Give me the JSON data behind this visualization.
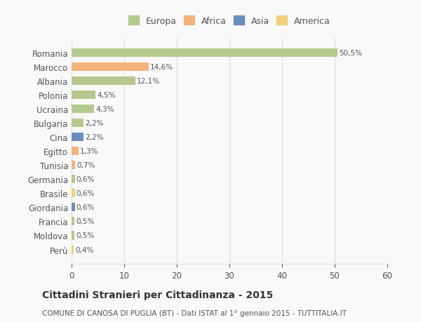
{
  "countries": [
    "Romania",
    "Marocco",
    "Albania",
    "Polonia",
    "Ucraina",
    "Bulgaria",
    "Cina",
    "Egitto",
    "Tunisia",
    "Germania",
    "Brasile",
    "Giordania",
    "Francia",
    "Moldova",
    "Perù"
  ],
  "values": [
    50.5,
    14.6,
    12.1,
    4.5,
    4.3,
    2.2,
    2.2,
    1.3,
    0.7,
    0.6,
    0.6,
    0.6,
    0.5,
    0.5,
    0.4
  ],
  "labels": [
    "50,5%",
    "14,6%",
    "12,1%",
    "4,5%",
    "4,3%",
    "2,2%",
    "2,2%",
    "1,3%",
    "0,7%",
    "0,6%",
    "0,6%",
    "0,6%",
    "0,5%",
    "0,5%",
    "0,4%"
  ],
  "continents": [
    "Europa",
    "Africa",
    "Europa",
    "Europa",
    "Europa",
    "Europa",
    "Asia",
    "Africa",
    "Africa",
    "Europa",
    "America",
    "Asia",
    "Europa",
    "Europa",
    "America"
  ],
  "continent_colors": {
    "Europa": "#b5c98e",
    "Africa": "#f0b47c",
    "Asia": "#6b8ebf",
    "America": "#f0d07c"
  },
  "legend_order": [
    "Europa",
    "Africa",
    "Asia",
    "America"
  ],
  "title": "Cittadini Stranieri per Cittadinanza - 2015",
  "subtitle": "COMUNE DI CANOSA DI PUGLIA (BT) - Dati ISTAT al 1° gennaio 2015 - TUTTITALIA.IT",
  "xlim": [
    0,
    60
  ],
  "xticks": [
    0,
    10,
    20,
    30,
    40,
    50,
    60
  ],
  "bar_height": 0.6,
  "background_color": "#f9f9f9",
  "grid_color": "#dddddd",
  "text_color": "#555555",
  "title_color": "#333333"
}
